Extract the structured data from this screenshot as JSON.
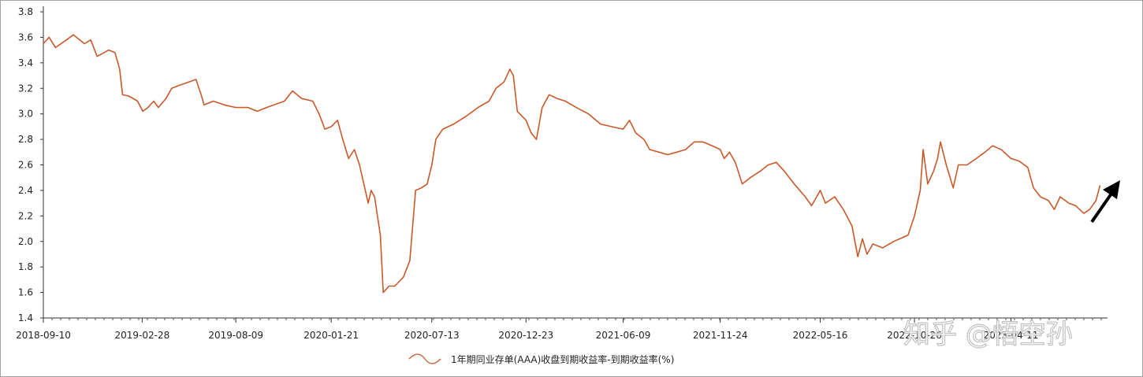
{
  "chart_data": {
    "type": "line",
    "title": "",
    "xlabel": "",
    "ylabel": "",
    "ylim": [
      1.4,
      3.8
    ],
    "yticks": [
      "1.4",
      "1.6",
      "1.8",
      "2.0",
      "2.2",
      "2.4",
      "2.6",
      "2.8",
      "3.0",
      "3.2",
      "3.4",
      "3.6",
      "3.8"
    ],
    "xticks": [
      "2018-09-10",
      "2019-02-28",
      "2019-08-09",
      "2020-01-21",
      "2020-07-13",
      "2020-12-23",
      "2021-06-09",
      "2021-11-24",
      "2022-05-16",
      "2022-10-26",
      "2023-04-11"
    ],
    "grid": false,
    "legend_position": "bottom",
    "series": [
      {
        "name": "1年期同业存单(AAA)收盘到期收益率-到期收益率(%)",
        "color": "#C9582A",
        "points": [
          [
            "2018-09-10",
            3.55
          ],
          [
            "2018-09-20",
            3.6
          ],
          [
            "2018-10-01",
            3.52
          ],
          [
            "2018-10-20",
            3.58
          ],
          [
            "2018-11-01",
            3.62
          ],
          [
            "2018-11-20",
            3.55
          ],
          [
            "2018-12-01",
            3.58
          ],
          [
            "2018-12-12",
            3.45
          ],
          [
            "2019-01-01",
            3.5
          ],
          [
            "2019-01-12",
            3.48
          ],
          [
            "2019-01-20",
            3.35
          ],
          [
            "2019-01-25",
            3.15
          ],
          [
            "2019-02-05",
            3.14
          ],
          [
            "2019-02-20",
            3.1
          ],
          [
            "2019-03-01",
            3.02
          ],
          [
            "2019-03-10",
            3.05
          ],
          [
            "2019-03-20",
            3.1
          ],
          [
            "2019-03-28",
            3.05
          ],
          [
            "2019-04-10",
            3.12
          ],
          [
            "2019-04-20",
            3.2
          ],
          [
            "2019-05-01",
            3.22
          ],
          [
            "2019-05-20",
            3.25
          ],
          [
            "2019-06-01",
            3.27
          ],
          [
            "2019-06-10",
            3.15
          ],
          [
            "2019-06-15",
            3.07
          ],
          [
            "2019-07-01",
            3.1
          ],
          [
            "2019-07-20",
            3.07
          ],
          [
            "2019-08-09",
            3.05
          ],
          [
            "2019-08-30",
            3.05
          ],
          [
            "2019-09-15",
            3.02
          ],
          [
            "2019-10-01",
            3.05
          ],
          [
            "2019-11-01",
            3.1
          ],
          [
            "2019-11-15",
            3.18
          ],
          [
            "2019-12-01",
            3.12
          ],
          [
            "2019-12-20",
            3.1
          ],
          [
            "2019-12-31",
            3.0
          ],
          [
            "2020-01-10",
            2.88
          ],
          [
            "2020-01-21",
            2.9
          ],
          [
            "2020-02-01",
            2.95
          ],
          [
            "2020-02-10",
            2.8
          ],
          [
            "2020-02-20",
            2.65
          ],
          [
            "2020-03-01",
            2.72
          ],
          [
            "2020-03-10",
            2.6
          ],
          [
            "2020-03-20",
            2.4
          ],
          [
            "2020-03-25",
            2.3
          ],
          [
            "2020-03-30",
            2.4
          ],
          [
            "2020-04-05",
            2.35
          ],
          [
            "2020-04-10",
            2.2
          ],
          [
            "2020-04-15",
            2.05
          ],
          [
            "2020-04-20",
            1.6
          ],
          [
            "2020-04-30",
            1.65
          ],
          [
            "2020-05-10",
            1.65
          ],
          [
            "2020-05-25",
            1.72
          ],
          [
            "2020-06-05",
            1.85
          ],
          [
            "2020-06-15",
            2.4
          ],
          [
            "2020-06-25",
            2.42
          ],
          [
            "2020-07-05",
            2.45
          ],
          [
            "2020-07-13",
            2.6
          ],
          [
            "2020-07-20",
            2.8
          ],
          [
            "2020-08-01",
            2.88
          ],
          [
            "2020-08-20",
            2.92
          ],
          [
            "2020-09-10",
            2.98
          ],
          [
            "2020-10-01",
            3.05
          ],
          [
            "2020-10-20",
            3.1
          ],
          [
            "2020-11-01",
            3.2
          ],
          [
            "2020-11-15",
            3.25
          ],
          [
            "2020-11-25",
            3.35
          ],
          [
            "2020-12-01",
            3.3
          ],
          [
            "2020-12-08",
            3.02
          ],
          [
            "2020-12-23",
            2.95
          ],
          [
            "2021-01-01",
            2.85
          ],
          [
            "2021-01-10",
            2.8
          ],
          [
            "2021-01-20",
            3.05
          ],
          [
            "2021-02-01",
            3.15
          ],
          [
            "2021-02-15",
            3.12
          ],
          [
            "2021-03-01",
            3.1
          ],
          [
            "2021-03-20",
            3.05
          ],
          [
            "2021-04-10",
            3.0
          ],
          [
            "2021-05-01",
            2.92
          ],
          [
            "2021-05-20",
            2.9
          ],
          [
            "2021-06-09",
            2.88
          ],
          [
            "2021-06-20",
            2.95
          ],
          [
            "2021-07-01",
            2.85
          ],
          [
            "2021-07-15",
            2.8
          ],
          [
            "2021-07-25",
            2.72
          ],
          [
            "2021-08-10",
            2.7
          ],
          [
            "2021-08-25",
            2.68
          ],
          [
            "2021-09-10",
            2.7
          ],
          [
            "2021-09-25",
            2.72
          ],
          [
            "2021-10-10",
            2.78
          ],
          [
            "2021-10-25",
            2.78
          ],
          [
            "2021-11-10",
            2.75
          ],
          [
            "2021-11-24",
            2.72
          ],
          [
            "2021-12-01",
            2.65
          ],
          [
            "2021-12-10",
            2.7
          ],
          [
            "2021-12-20",
            2.62
          ],
          [
            "2022-01-01",
            2.45
          ],
          [
            "2022-01-15",
            2.5
          ],
          [
            "2022-02-01",
            2.55
          ],
          [
            "2022-02-15",
            2.6
          ],
          [
            "2022-03-01",
            2.62
          ],
          [
            "2022-03-15",
            2.55
          ],
          [
            "2022-04-01",
            2.45
          ],
          [
            "2022-04-20",
            2.35
          ],
          [
            "2022-05-01",
            2.28
          ],
          [
            "2022-05-16",
            2.4
          ],
          [
            "2022-05-25",
            2.3
          ],
          [
            "2022-06-10",
            2.35
          ],
          [
            "2022-06-25",
            2.25
          ],
          [
            "2022-07-10",
            2.12
          ],
          [
            "2022-07-20",
            1.88
          ],
          [
            "2022-07-28",
            2.02
          ],
          [
            "2022-08-05",
            1.9
          ],
          [
            "2022-08-15",
            1.98
          ],
          [
            "2022-09-01",
            1.95
          ],
          [
            "2022-09-20",
            2.0
          ],
          [
            "2022-10-05",
            2.03
          ],
          [
            "2022-10-15",
            2.05
          ],
          [
            "2022-10-26",
            2.2
          ],
          [
            "2022-11-05",
            2.4
          ],
          [
            "2022-11-10",
            2.72
          ],
          [
            "2022-11-18",
            2.45
          ],
          [
            "2022-11-28",
            2.55
          ],
          [
            "2022-12-05",
            2.65
          ],
          [
            "2022-12-10",
            2.78
          ],
          [
            "2022-12-20",
            2.6
          ],
          [
            "2023-01-01",
            2.42
          ],
          [
            "2023-01-10",
            2.6
          ],
          [
            "2023-01-25",
            2.6
          ],
          [
            "2023-02-10",
            2.65
          ],
          [
            "2023-02-25",
            2.7
          ],
          [
            "2023-03-10",
            2.75
          ],
          [
            "2023-03-25",
            2.72
          ],
          [
            "2023-04-11",
            2.65
          ],
          [
            "2023-04-25",
            2.63
          ],
          [
            "2023-05-10",
            2.58
          ],
          [
            "2023-05-20",
            2.42
          ],
          [
            "2023-06-01",
            2.35
          ],
          [
            "2023-06-15",
            2.32
          ],
          [
            "2023-06-25",
            2.25
          ],
          [
            "2023-07-05",
            2.35
          ],
          [
            "2023-07-20",
            2.3
          ],
          [
            "2023-08-01",
            2.28
          ],
          [
            "2023-08-15",
            2.22
          ],
          [
            "2023-08-25",
            2.25
          ],
          [
            "2023-09-05",
            2.32
          ],
          [
            "2023-09-12",
            2.44
          ]
        ]
      }
    ],
    "annotations": [
      {
        "type": "arrow",
        "description": "black arrow pointing up-right at the end of the series"
      }
    ]
  },
  "watermark": "知乎 @悟空孙"
}
